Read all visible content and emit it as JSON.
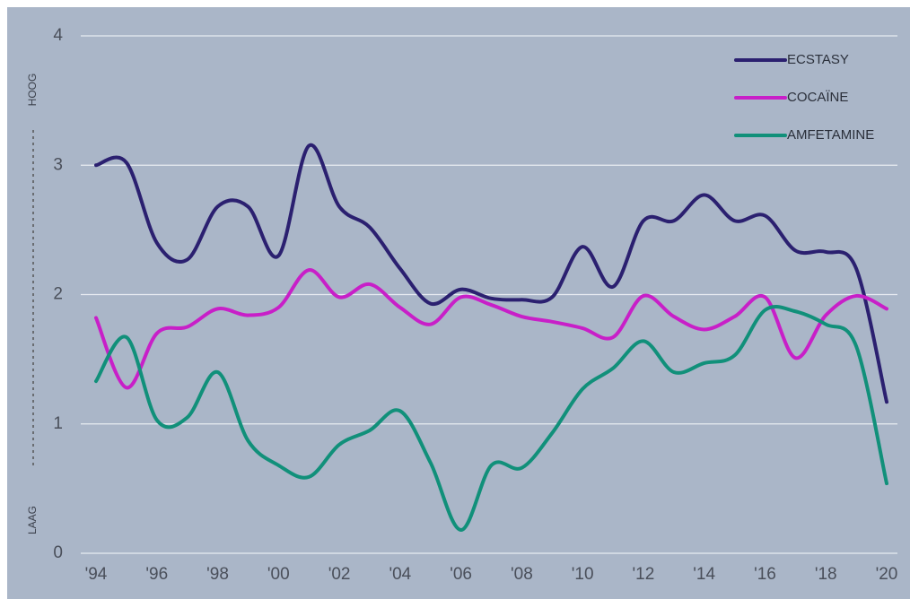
{
  "chart_data": {
    "type": "line",
    "categories": [
      "'94",
      null,
      "'96",
      null,
      "'98",
      null,
      "'00",
      null,
      "'02",
      null,
      "'04",
      null,
      "'06",
      null,
      "'08",
      null,
      "'10",
      null,
      "'12",
      null,
      "'14",
      null,
      "'16",
      null,
      "'18",
      null,
      "'20"
    ],
    "series": [
      {
        "name": "ECSTASY",
        "color": "#2b2070",
        "values": [
          3.0,
          3.02,
          2.4,
          2.27,
          2.68,
          2.68,
          2.3,
          3.15,
          2.68,
          2.52,
          2.2,
          1.93,
          2.04,
          1.97,
          1.96,
          1.98,
          2.37,
          2.06,
          2.57,
          2.57,
          2.77,
          2.57,
          2.61,
          2.34,
          2.33,
          2.2,
          1.17
        ]
      },
      {
        "name": "COCAÏNE",
        "color": "#c81fc8",
        "values": [
          1.82,
          1.28,
          1.7,
          1.75,
          1.89,
          1.84,
          1.9,
          2.19,
          1.98,
          2.08,
          1.9,
          1.77,
          1.98,
          1.92,
          1.83,
          1.79,
          1.74,
          1.67,
          1.99,
          1.83,
          1.73,
          1.83,
          1.98,
          1.51,
          1.84,
          1.99,
          1.89
        ]
      },
      {
        "name": "AMFETAMINE",
        "color": "#11907a",
        "values": [
          1.33,
          1.67,
          1.03,
          1.05,
          1.4,
          0.87,
          0.68,
          0.59,
          0.84,
          0.95,
          1.1,
          0.7,
          0.18,
          0.68,
          0.66,
          0.93,
          1.27,
          1.43,
          1.64,
          1.4,
          1.47,
          1.53,
          1.88,
          1.87,
          1.77,
          1.6,
          0.54
        ]
      }
    ],
    "ylim": [
      0,
      4
    ],
    "yticks": [
      0,
      1,
      2,
      3,
      4
    ],
    "grid": true,
    "legend": "top-right",
    "annotations": [
      "HOOG",
      "LAAG"
    ]
  }
}
